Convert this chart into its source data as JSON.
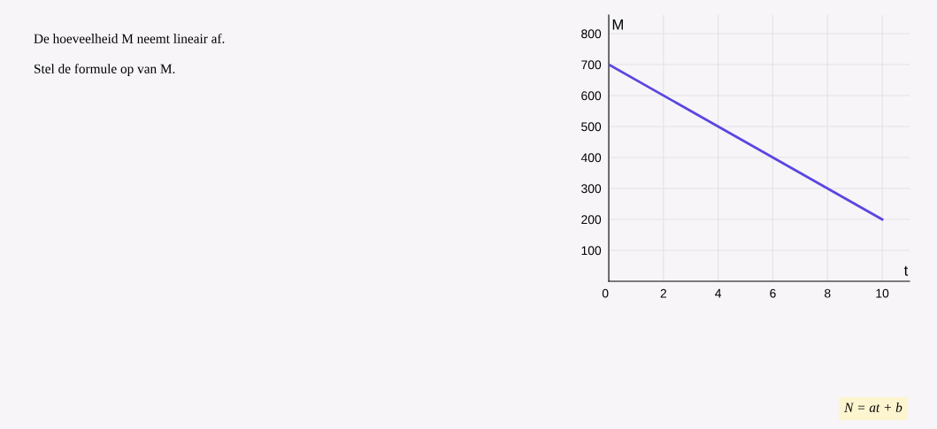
{
  "chart_data": {
    "type": "line",
    "xlabel": "t",
    "ylabel": "M",
    "x": [
      0,
      10
    ],
    "series": [
      {
        "color": "#5a46e0",
        "values": [
          700,
          200
        ]
      }
    ],
    "xlim": [
      0,
      11
    ],
    "ylim": [
      0,
      860
    ],
    "xticks": [
      0,
      2,
      4,
      6,
      8,
      10
    ],
    "yticks": [
      100,
      200,
      300,
      400,
      500,
      600,
      700,
      800
    ],
    "grid": true,
    "marker": "none",
    "line_style": "solid",
    "annotations": [
      "De hoeveelheid M neemt lineair af.",
      "Stel de formule op van M.",
      "N = at + b"
    ]
  }
}
